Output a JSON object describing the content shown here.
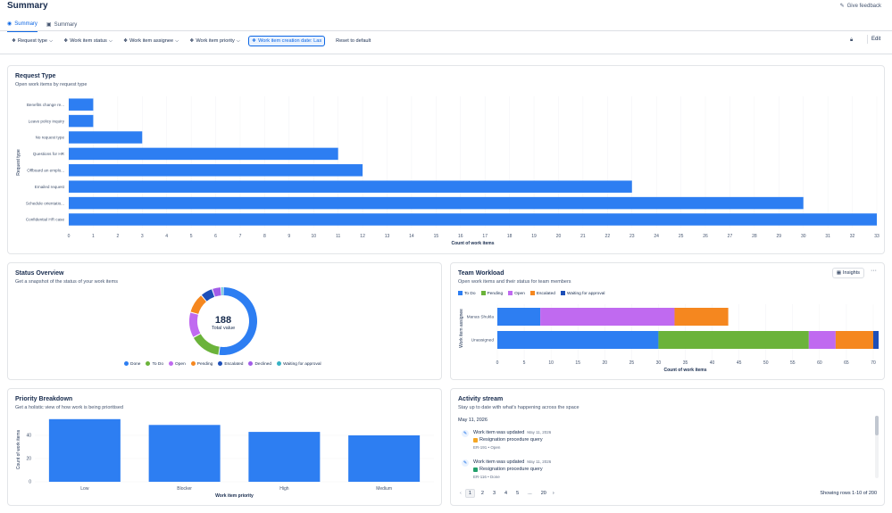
{
  "header": {
    "title": "Summary",
    "feedback": "Give feedback",
    "tabs": [
      {
        "label": "Summary",
        "active": true
      },
      {
        "label": "Summary",
        "active": false
      }
    ]
  },
  "filters": {
    "items": [
      "Request type",
      "Work item status",
      "Work item assignee",
      "Work item priority",
      "Work item creation date: Las"
    ],
    "reset": "Reset to default",
    "edit": "Edit"
  },
  "request_type": {
    "title": "Request Type",
    "subtitle": "Open work items by request type"
  },
  "status_overview": {
    "title": "Status Overview",
    "subtitle": "Get a snapshot of the status of your work items",
    "total": "188",
    "total_label": "Total value"
  },
  "team_workload": {
    "title": "Team Workload",
    "subtitle": "Open work items and their status for team members",
    "insights": "Insights",
    "more": "···"
  },
  "priority": {
    "title": "Priority Breakdown",
    "subtitle": "Get a holistic view of how work is being prioritised"
  },
  "activity": {
    "title": "Activity stream",
    "subtitle": "Stay up to date with what's happening across the space",
    "date": "May 11, 2026",
    "items": [
      {
        "title": "Work item was updated",
        "date": "May 11, 2026",
        "name": "Resignation procedure query",
        "meta": "ER-191 • Open",
        "color": "#f5a623"
      },
      {
        "title": "Work item was updated",
        "date": "May 11, 2026",
        "name": "Resignation procedure query",
        "meta": "ER-116 • Done",
        "color": "#22a06b"
      }
    ],
    "pages": [
      "1",
      "2",
      "3",
      "4",
      "5",
      "...",
      "20"
    ],
    "showing": "Showing rows 1-10 of 200"
  },
  "chart_data": [
    {
      "type": "bar",
      "orientation": "horizontal",
      "title": "Request Type",
      "categories": [
        "Benefits change re...",
        "Leave policy inquiry",
        "No request type",
        "Questions for HR",
        "Offboard an emplo...",
        "Emailed request",
        "Schedule orientatio...",
        "Confidential HR case"
      ],
      "values": [
        1,
        1,
        3,
        11,
        12,
        23,
        30,
        33
      ],
      "xlabel": "Count of work items",
      "ylabel": "Request type",
      "xlim": [
        0,
        33
      ],
      "ticks": [
        "0",
        "1",
        "2",
        "3",
        "4",
        "5",
        "6",
        "7",
        "8",
        "9",
        "10",
        "11",
        "12",
        "13",
        "14",
        "15",
        "16",
        "17",
        "18",
        "19",
        "20",
        "21",
        "22",
        "23",
        "24",
        "25",
        "26",
        "27",
        "28",
        "29",
        "30",
        "31",
        "32",
        "33"
      ],
      "color": "#2d7ef2"
    },
    {
      "type": "pie",
      "donut": true,
      "title": "Status Overview",
      "labels": [
        "Done",
        "To Do",
        "Open",
        "Pending",
        "Escalated",
        "Declined",
        "Waiting for approval"
      ],
      "values": [
        98,
        28,
        23,
        18,
        11,
        8,
        2
      ],
      "colors": [
        "#2d7ef2",
        "#6bb33a",
        "#c06af0",
        "#f5871f",
        "#1d4fb8",
        "#a25ce8",
        "#37b2c4"
      ]
    },
    {
      "type": "bar",
      "orientation": "horizontal",
      "stacked": true,
      "title": "Team Workload",
      "categories": [
        "Manas Shukla",
        "Unassigned"
      ],
      "series": [
        {
          "name": "To Do",
          "values": [
            8,
            30
          ],
          "color": "#2d7ef2"
        },
        {
          "name": "Pending",
          "values": [
            0,
            28
          ],
          "color": "#6bb33a"
        },
        {
          "name": "Open",
          "values": [
            25,
            5
          ],
          "color": "#c06af0"
        },
        {
          "name": "Escalated",
          "values": [
            10,
            7
          ],
          "color": "#f5871f"
        },
        {
          "name": "Waiting for approval",
          "values": [
            0,
            1
          ],
          "color": "#1d4fb8"
        }
      ],
      "xlabel": "Count of work items",
      "ylabel": "Work item assignee",
      "xlim": [
        0,
        70
      ],
      "ticks": [
        "0",
        "5",
        "10",
        "15",
        "20",
        "25",
        "30",
        "35",
        "40",
        "45",
        "50",
        "55",
        "60",
        "65",
        "70"
      ]
    },
    {
      "type": "bar",
      "title": "Priority Breakdown",
      "categories": [
        "Low",
        "Blocker",
        "High",
        "Medium"
      ],
      "values": [
        54,
        49,
        43,
        40
      ],
      "xlabel": "Work item priority",
      "ylabel": "Count of work items",
      "ylim": [
        0,
        60
      ],
      "yticks": [
        "0",
        "20",
        "40"
      ],
      "color": "#2d7ef2"
    }
  ]
}
